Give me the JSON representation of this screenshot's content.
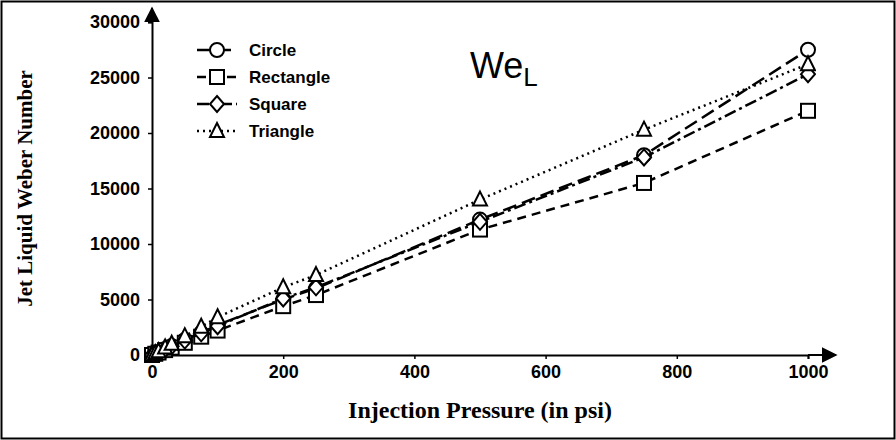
{
  "chart_data": {
    "type": "line",
    "title": "WeL",
    "x_label": "Injection Pressure (in psi)",
    "y_label": "Jet Liquid Weber Number",
    "x": [
      0,
      5,
      10,
      20,
      30,
      50,
      75,
      100,
      200,
      250,
      500,
      750,
      1000
    ],
    "series": [
      {
        "name": "Circle",
        "color": "#000000",
        "marker": "circle",
        "line_style": "longdash",
        "values": [
          0,
          135,
          270,
          550,
          800,
          1350,
          2000,
          2700,
          5000,
          6000,
          12200,
          18000,
          27500
        ]
      },
      {
        "name": "Rectangle",
        "color": "#000000",
        "marker": "square",
        "line_style": "dash",
        "values": [
          0,
          110,
          220,
          440,
          660,
          1100,
          1650,
          2200,
          4400,
          5400,
          11300,
          15500,
          22000
        ]
      },
      {
        "name": "Square",
        "color": "#000000",
        "marker": "diamond",
        "line_style": "dashdot",
        "values": [
          0,
          130,
          260,
          520,
          780,
          1300,
          1950,
          2600,
          5100,
          6100,
          12000,
          17800,
          25300
        ]
      },
      {
        "name": "Triangle",
        "color": "#000000",
        "marker": "triangle",
        "line_style": "dot",
        "values": [
          0,
          170,
          340,
          680,
          1020,
          1700,
          2550,
          3400,
          6100,
          7200,
          14000,
          20300,
          26200
        ]
      }
    ],
    "xlim": [
      0,
      1000
    ],
    "xticks": [
      0,
      200,
      400,
      600,
      800,
      1000
    ],
    "ylim": [
      0,
      30000
    ],
    "yticks": [
      0,
      5000,
      10000,
      15000,
      20000,
      25000,
      30000
    ],
    "grid": false,
    "legend": "upper-left"
  }
}
